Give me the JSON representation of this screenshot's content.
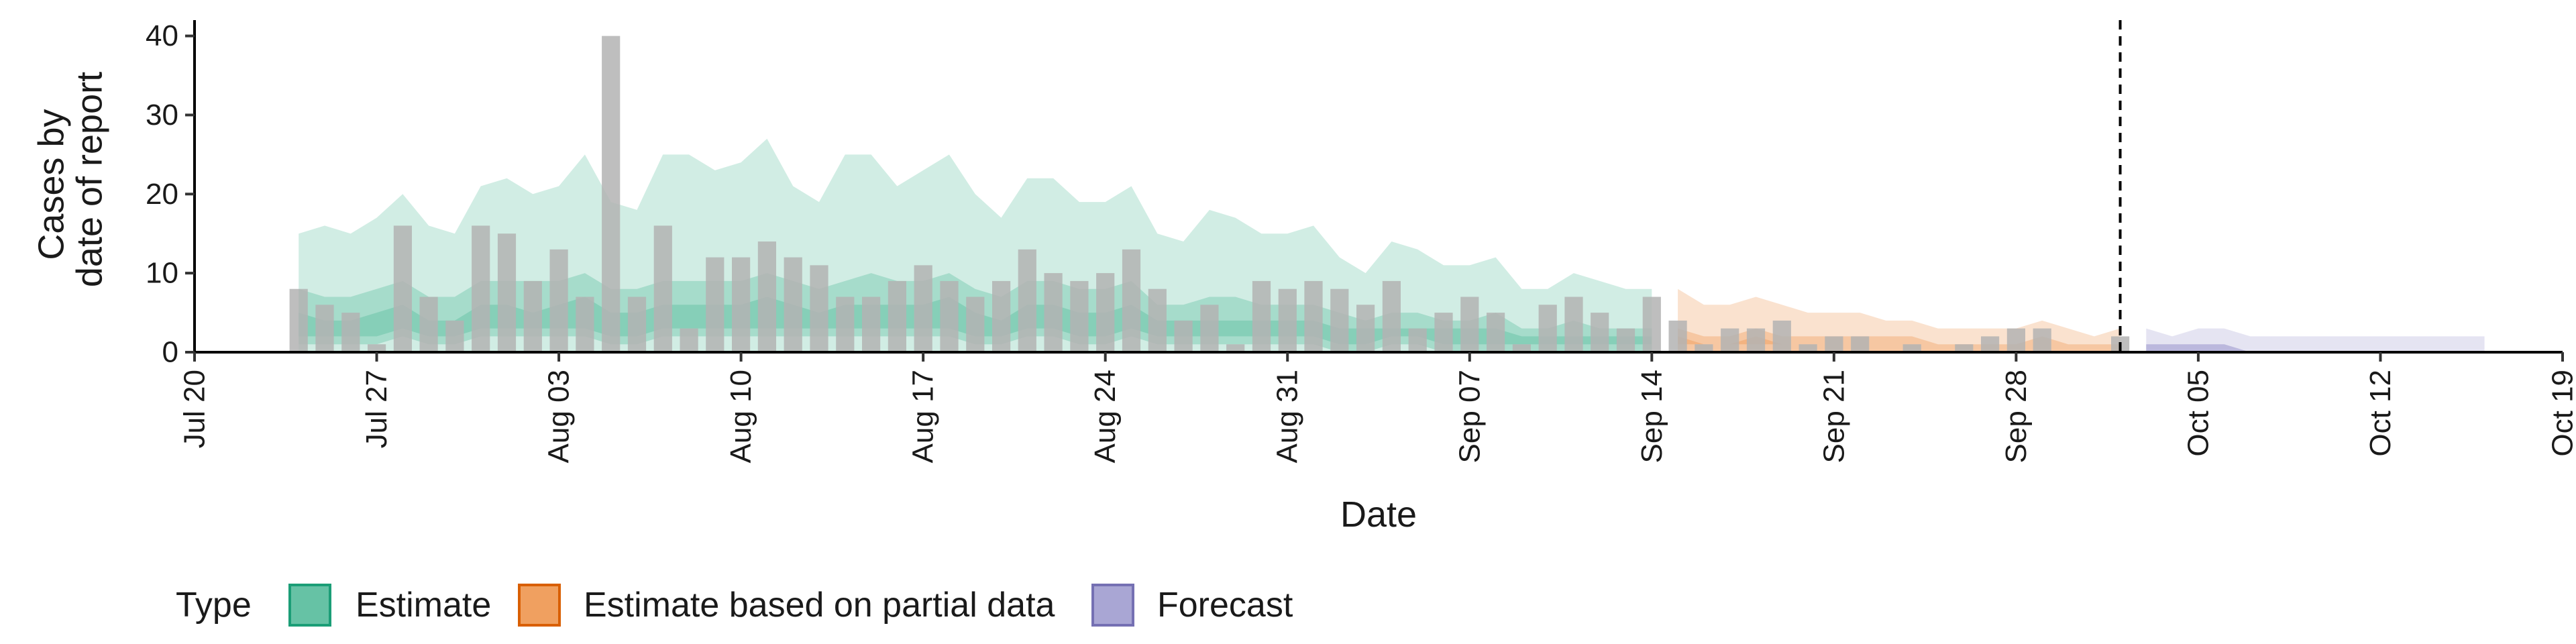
{
  "chart_data": {
    "type": "bar",
    "xlabel": "Date",
    "ylabel_lines": [
      "Cases by",
      "date of report"
    ],
    "ylim": [
      0,
      42
    ],
    "y_ticks": [
      0,
      10,
      20,
      30,
      40
    ],
    "x_ticks": [
      {
        "date": "2020-07-20",
        "label": "Jul 20"
      },
      {
        "date": "2020-07-27",
        "label": "Jul 27"
      },
      {
        "date": "2020-08-03",
        "label": "Aug 03"
      },
      {
        "date": "2020-08-10",
        "label": "Aug 10"
      },
      {
        "date": "2020-08-17",
        "label": "Aug 17"
      },
      {
        "date": "2020-08-24",
        "label": "Aug 24"
      },
      {
        "date": "2020-08-31",
        "label": "Aug 31"
      },
      {
        "date": "2020-09-07",
        "label": "Sep 07"
      },
      {
        "date": "2020-09-14",
        "label": "Sep 14"
      },
      {
        "date": "2020-09-21",
        "label": "Sep 21"
      },
      {
        "date": "2020-09-28",
        "label": "Sep 28"
      },
      {
        "date": "2020-10-05",
        "label": "Oct 05"
      },
      {
        "date": "2020-10-12",
        "label": "Oct 12"
      },
      {
        "date": "2020-10-19",
        "label": "Oct 19"
      }
    ],
    "xlim": [
      "2020-07-20",
      "2020-10-19"
    ],
    "vline_date": "2020-10-02",
    "legend": {
      "title": "Type",
      "position": "bottom",
      "items": [
        {
          "label": "Estimate",
          "fill": "#66c2a5",
          "stroke": "#1b9e77"
        },
        {
          "label": "Estimate based on partial data",
          "fill": "#f0a060",
          "stroke": "#d95f02"
        },
        {
          "label": "Forecast",
          "fill": "#a9a6d4",
          "stroke": "#7570b3"
        }
      ]
    },
    "bars": {
      "color": "#b3b3b3",
      "dates": [
        "2020-07-24",
        "2020-07-25",
        "2020-07-26",
        "2020-07-27",
        "2020-07-28",
        "2020-07-29",
        "2020-07-30",
        "2020-07-31",
        "2020-08-01",
        "2020-08-02",
        "2020-08-03",
        "2020-08-04",
        "2020-08-05",
        "2020-08-06",
        "2020-08-07",
        "2020-08-08",
        "2020-08-09",
        "2020-08-10",
        "2020-08-11",
        "2020-08-12",
        "2020-08-13",
        "2020-08-14",
        "2020-08-15",
        "2020-08-16",
        "2020-08-17",
        "2020-08-18",
        "2020-08-19",
        "2020-08-20",
        "2020-08-21",
        "2020-08-22",
        "2020-08-23",
        "2020-08-24",
        "2020-08-25",
        "2020-08-26",
        "2020-08-27",
        "2020-08-28",
        "2020-08-29",
        "2020-08-30",
        "2020-08-31",
        "2020-09-01",
        "2020-09-02",
        "2020-09-03",
        "2020-09-04",
        "2020-09-05",
        "2020-09-06",
        "2020-09-07",
        "2020-09-08",
        "2020-09-09",
        "2020-09-10",
        "2020-09-11",
        "2020-09-12",
        "2020-09-13",
        "2020-09-14",
        "2020-09-15",
        "2020-09-16",
        "2020-09-17",
        "2020-09-18",
        "2020-09-19",
        "2020-09-20",
        "2020-09-21",
        "2020-09-22",
        "2020-09-23",
        "2020-09-24",
        "2020-09-25",
        "2020-09-26",
        "2020-09-27",
        "2020-09-28",
        "2020-09-29",
        "2020-09-30",
        "2020-10-01",
        "2020-10-02"
      ],
      "values": [
        8,
        6,
        5,
        1,
        16,
        7,
        4,
        16,
        15,
        9,
        13,
        7,
        40,
        7,
        16,
        3,
        12,
        12,
        14,
        12,
        11,
        7,
        7,
        9,
        11,
        9,
        7,
        9,
        13,
        10,
        9,
        10,
        13,
        8,
        4,
        6,
        1,
        9,
        8,
        9,
        8,
        6,
        9,
        3,
        5,
        7,
        5,
        1,
        6,
        7,
        5,
        3,
        7,
        4,
        1,
        3,
        3,
        4,
        1,
        2,
        2,
        0,
        1,
        0,
        1,
        2,
        3,
        3,
        0,
        0,
        2
      ]
    },
    "series": [
      {
        "name": "Estimate",
        "dates": [
          "2020-07-24",
          "2020-07-25",
          "2020-07-26",
          "2020-07-27",
          "2020-07-28",
          "2020-07-29",
          "2020-07-30",
          "2020-07-31",
          "2020-08-01",
          "2020-08-02",
          "2020-08-03",
          "2020-08-04",
          "2020-08-05",
          "2020-08-06",
          "2020-08-07",
          "2020-08-08",
          "2020-08-09",
          "2020-08-10",
          "2020-08-11",
          "2020-08-12",
          "2020-08-13",
          "2020-08-14",
          "2020-08-15",
          "2020-08-16",
          "2020-08-17",
          "2020-08-18",
          "2020-08-19",
          "2020-08-20",
          "2020-08-21",
          "2020-08-22",
          "2020-08-23",
          "2020-08-24",
          "2020-08-25",
          "2020-08-26",
          "2020-08-27",
          "2020-08-28",
          "2020-08-29",
          "2020-08-30",
          "2020-08-31",
          "2020-09-01",
          "2020-09-02",
          "2020-09-03",
          "2020-09-04",
          "2020-09-05",
          "2020-09-06",
          "2020-09-07",
          "2020-09-08",
          "2020-09-09",
          "2020-09-10",
          "2020-09-11",
          "2020-09-12",
          "2020-09-13",
          "2020-09-14"
        ],
        "outer_lower": [
          0,
          0,
          0,
          0,
          0,
          0,
          0,
          0,
          0,
          0,
          0,
          0,
          0,
          0,
          0,
          0,
          0,
          0,
          0,
          0,
          0,
          0,
          0,
          0,
          0,
          0,
          0,
          0,
          0,
          0,
          0,
          0,
          0,
          0,
          0,
          0,
          0,
          0,
          0,
          0,
          0,
          0,
          0,
          0,
          0,
          0,
          0,
          0,
          0,
          0,
          0,
          0,
          0
        ],
        "outer_upper": [
          15,
          16,
          15,
          17,
          20,
          16,
          15,
          21,
          22,
          20,
          21,
          25,
          19,
          18,
          25,
          25,
          23,
          24,
          27,
          21,
          19,
          25,
          25,
          21,
          23,
          25,
          20,
          17,
          22,
          22,
          19,
          19,
          21,
          15,
          14,
          18,
          17,
          15,
          15,
          16,
          12,
          10,
          14,
          13,
          11,
          11,
          12,
          8,
          8,
          10,
          9,
          8,
          8
        ],
        "mid_lower": [
          1,
          1,
          1,
          1,
          2,
          1,
          1,
          2,
          2,
          2,
          2,
          2,
          1,
          1,
          2,
          2,
          2,
          2,
          2,
          2,
          2,
          2,
          2,
          2,
          2,
          2,
          1,
          1,
          2,
          2,
          1,
          1,
          2,
          1,
          1,
          1,
          1,
          1,
          1,
          1,
          0,
          0,
          1,
          1,
          0,
          0,
          0,
          0,
          0,
          0,
          0,
          0,
          0
        ],
        "mid_upper": [
          8,
          7,
          7,
          8,
          9,
          7,
          7,
          9,
          9,
          9,
          9,
          10,
          8,
          8,
          9,
          9,
          9,
          9,
          10,
          9,
          8,
          9,
          10,
          9,
          9,
          10,
          8,
          7,
          9,
          9,
          8,
          8,
          9,
          6,
          6,
          7,
          7,
          6,
          6,
          6,
          5,
          4,
          5,
          5,
          4,
          4,
          5,
          3,
          3,
          4,
          3,
          3,
          3
        ],
        "inner_lower": [
          2,
          2,
          2,
          2,
          3,
          2,
          2,
          3,
          3,
          3,
          3,
          3,
          2,
          2,
          3,
          3,
          3,
          3,
          3,
          3,
          3,
          3,
          3,
          3,
          3,
          3,
          2,
          2,
          3,
          3,
          2,
          2,
          3,
          2,
          2,
          2,
          2,
          2,
          2,
          2,
          1,
          1,
          2,
          2,
          1,
          1,
          1,
          1,
          1,
          1,
          1,
          1,
          1
        ],
        "inner_upper": [
          5,
          4,
          4,
          5,
          6,
          4,
          4,
          6,
          6,
          5,
          6,
          7,
          5,
          5,
          6,
          6,
          6,
          6,
          7,
          6,
          5,
          6,
          6,
          6,
          6,
          7,
          5,
          4,
          6,
          6,
          5,
          5,
          6,
          4,
          4,
          4,
          4,
          4,
          4,
          4,
          3,
          3,
          3,
          3,
          3,
          3,
          3,
          2,
          2,
          2,
          2,
          2,
          2
        ]
      },
      {
        "name": "Estimate based on partial data",
        "dates": [
          "2020-09-15",
          "2020-09-16",
          "2020-09-17",
          "2020-09-18",
          "2020-09-19",
          "2020-09-20",
          "2020-09-21",
          "2020-09-22",
          "2020-09-23",
          "2020-09-24",
          "2020-09-25",
          "2020-09-26",
          "2020-09-27",
          "2020-09-28",
          "2020-09-29",
          "2020-09-30",
          "2020-10-01",
          "2020-10-02"
        ],
        "outer_lower": [
          0,
          0,
          0,
          0,
          0,
          0,
          0,
          0,
          0,
          0,
          0,
          0,
          0,
          0,
          0,
          0,
          0,
          0
        ],
        "outer_upper": [
          8,
          6,
          6,
          7,
          6,
          5,
          5,
          5,
          4,
          4,
          3,
          3,
          3,
          3,
          4,
          3,
          2,
          3
        ],
        "mid_lower": [
          0,
          0,
          0,
          0,
          0,
          0,
          0,
          0,
          0,
          0,
          0,
          0,
          0,
          0,
          0,
          0,
          0,
          0
        ],
        "mid_upper": [
          3,
          2,
          2,
          3,
          2,
          2,
          2,
          2,
          2,
          2,
          1,
          1,
          1,
          1,
          2,
          1,
          1,
          1
        ],
        "inner_lower": [
          1,
          1,
          1,
          1,
          1,
          1,
          1,
          1,
          1,
          1,
          1,
          1,
          1,
          1,
          1,
          1,
          1,
          1
        ],
        "inner_upper": [
          2,
          1,
          1,
          2,
          1,
          1,
          1,
          1,
          1,
          1,
          1,
          1,
          1,
          1,
          1,
          1,
          1,
          1
        ]
      },
      {
        "name": "Forecast",
        "dates": [
          "2020-10-03",
          "2020-10-04",
          "2020-10-05",
          "2020-10-06",
          "2020-10-07",
          "2020-10-08",
          "2020-10-09",
          "2020-10-10",
          "2020-10-11",
          "2020-10-12",
          "2020-10-13",
          "2020-10-14",
          "2020-10-15",
          "2020-10-16"
        ],
        "outer_lower": [
          0,
          0,
          0,
          0,
          0,
          0,
          0,
          0,
          0,
          0,
          0,
          0,
          0,
          0
        ],
        "outer_upper": [
          3,
          2,
          3,
          3,
          2,
          2,
          2,
          2,
          2,
          2,
          2,
          2,
          2,
          2
        ],
        "mid_lower": [
          0,
          0,
          0,
          0,
          0,
          0,
          0,
          0,
          0,
          0,
          0,
          0,
          0,
          0
        ],
        "mid_upper": [
          1,
          1,
          1,
          1,
          0,
          0,
          0,
          0,
          0,
          0,
          0,
          0,
          0,
          0
        ],
        "inner_lower": [
          0,
          0,
          0,
          0,
          0,
          0,
          0,
          0,
          0,
          0,
          0,
          0,
          0,
          0
        ],
        "inner_upper": [
          1,
          1,
          1,
          1,
          0,
          0,
          0,
          0,
          0,
          0,
          0,
          0,
          0,
          0
        ]
      }
    ]
  }
}
